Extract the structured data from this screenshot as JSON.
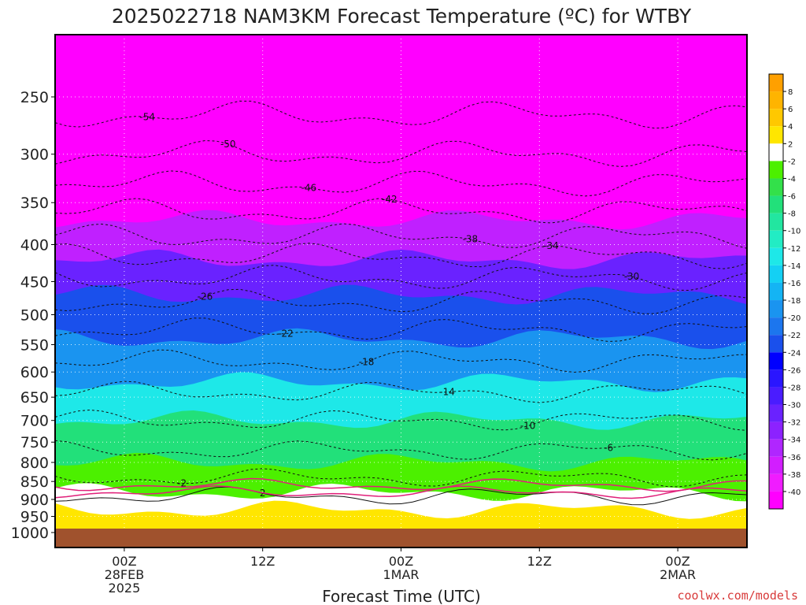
{
  "title": "2025022718 NAM3KM Forecast Temperature (ºC) for WTBY",
  "credit": "coolwx.com/models",
  "chart_data": {
    "type": "contour",
    "title": "2025022718 NAM3KM Forecast Temperature (ºC) for WTBY",
    "xlabel": "Forecast Time (UTC)",
    "ylabel": "",
    "x_ticks": [
      {
        "hour": 6,
        "lines": [
          "00Z",
          "28FEB",
          "2025"
        ]
      },
      {
        "hour": 18,
        "lines": [
          "12Z"
        ]
      },
      {
        "hour": 30,
        "lines": [
          "00Z",
          "1MAR"
        ]
      },
      {
        "hour": 42,
        "lines": [
          "12Z"
        ]
      },
      {
        "hour": 54,
        "lines": [
          "00Z",
          "2MAR"
        ]
      }
    ],
    "x_range_hours": [
      0,
      60
    ],
    "y_scale": "log-pressure (hPa, inverted)",
    "y_ticks": [
      250,
      300,
      350,
      400,
      450,
      500,
      550,
      600,
      650,
      700,
      750,
      800,
      850,
      900,
      950,
      1000
    ],
    "y_range_hPa": [
      200,
      1030
    ],
    "colorbar": {
      "labels": [
        "8",
        "6",
        "4",
        "2",
        "-2",
        "-4",
        "-6",
        "-8",
        "-10",
        "-12",
        "-14",
        "-16",
        "-18",
        "-20",
        "-22",
        "-24",
        "-26",
        "-28",
        "-30",
        "-32",
        "-34",
        "-36",
        "-38",
        "-40"
      ],
      "colors": [
        "#ffa000",
        "#ffb400",
        "#ffc800",
        "#ffe600",
        "#ffffff",
        "#4cf000",
        "#33e04a",
        "#22e07a",
        "#22e6a0",
        "#22ecc4",
        "#1ee8e8",
        "#14d0f4",
        "#14b4f4",
        "#1a94f0",
        "#1c76ee",
        "#1a50ec",
        "#0000ff",
        "#2a16ff",
        "#4a1cff",
        "#6a22ff",
        "#8c22ff",
        "#b026ff",
        "#d21eff",
        "#f01cff",
        "#ff00ff"
      ]
    },
    "ground_color": "#a0522d",
    "contours": [
      {
        "label": "-54",
        "levels": [
          [
            45,
            0
          ],
          [
            51,
            -54
          ],
          [
            57,
            -54
          ],
          [
            62,
            -52
          ],
          [
            58,
            -50
          ],
          [
            48,
            -50
          ],
          [
            44,
            -50
          ]
        ]
      },
      {
        "label": "-50",
        "levels": [
          [
            2,
            -50
          ],
          [
            12,
            -49
          ],
          [
            24,
            -50
          ],
          [
            36,
            -50
          ],
          [
            48,
            -50
          ],
          [
            56,
            -49
          ],
          [
            60,
            -48
          ]
        ]
      },
      {
        "label": "-46",
        "levels": [
          [
            2,
            -46
          ],
          [
            14,
            -45
          ],
          [
            24,
            -46
          ],
          [
            36,
            -46
          ],
          [
            48,
            -46
          ],
          [
            56,
            -45
          ],
          [
            60,
            -46
          ]
        ]
      },
      {
        "label": "-42",
        "levels": [
          [
            2,
            -43
          ],
          [
            14,
            -42
          ],
          [
            24,
            -42
          ],
          [
            36,
            -42
          ],
          [
            48,
            -42
          ],
          [
            56,
            -42
          ],
          [
            60,
            -42
          ]
        ]
      },
      {
        "label": "-38",
        "levels": [
          [
            2,
            -38
          ],
          [
            14,
            -38
          ],
          [
            24,
            -38
          ],
          [
            36,
            -38
          ],
          [
            48,
            -38
          ],
          [
            56,
            -38
          ],
          [
            60,
            -38
          ]
        ]
      },
      {
        "label": "-34",
        "levels": [
          [
            2,
            -34
          ],
          [
            14,
            -34
          ],
          [
            24,
            -34
          ],
          [
            36,
            -34
          ],
          [
            48,
            -34
          ],
          [
            56,
            -34
          ],
          [
            60,
            -34
          ]
        ]
      },
      {
        "label": "-30",
        "levels": [
          [
            2,
            -30
          ],
          [
            14,
            -30
          ],
          [
            24,
            -30
          ],
          [
            36,
            -30
          ],
          [
            48,
            -30
          ],
          [
            56,
            -30
          ],
          [
            60,
            -30
          ]
        ]
      },
      {
        "label": "-26",
        "levels": [
          [
            2,
            -26
          ],
          [
            14,
            -26
          ],
          [
            24,
            -26
          ],
          [
            36,
            -26
          ],
          [
            48,
            -26
          ],
          [
            56,
            -26
          ],
          [
            60,
            -26
          ]
        ]
      },
      {
        "label": "-22",
        "levels": [
          [
            2,
            -22
          ],
          [
            14,
            -22
          ],
          [
            24,
            -22
          ],
          [
            36,
            -22
          ],
          [
            48,
            -22
          ],
          [
            56,
            -22
          ],
          [
            60,
            -22
          ]
        ]
      },
      {
        "label": "-18",
        "levels": [
          [
            2,
            -18
          ],
          [
            14,
            -18
          ],
          [
            24,
            -18
          ],
          [
            36,
            -18
          ],
          [
            48,
            -18
          ],
          [
            56,
            -18
          ],
          [
            60,
            -18
          ]
        ]
      },
      {
        "label": "-14",
        "levels": [
          [
            2,
            -14
          ],
          [
            14,
            -14
          ],
          [
            24,
            -14
          ],
          [
            36,
            -14
          ],
          [
            48,
            -14
          ],
          [
            56,
            -14
          ],
          [
            60,
            -14
          ]
        ]
      },
      {
        "label": "-10",
        "levels": [
          [
            2,
            -10
          ],
          [
            14,
            -10
          ],
          [
            24,
            -10
          ],
          [
            36,
            -10
          ],
          [
            48,
            -10
          ],
          [
            56,
            -10
          ],
          [
            60,
            -10
          ]
        ]
      },
      {
        "label": "-6",
        "levels": [
          [
            2,
            -6
          ],
          [
            14,
            -6
          ],
          [
            24,
            -6
          ],
          [
            36,
            -6
          ],
          [
            48,
            -6
          ],
          [
            56,
            -6
          ],
          [
            60,
            -6
          ]
        ]
      },
      {
        "label": "-2",
        "levels": [
          [
            2,
            -2
          ],
          [
            14,
            -2
          ],
          [
            24,
            -2
          ],
          [
            36,
            -2
          ],
          [
            48,
            -2
          ],
          [
            56,
            -2
          ],
          [
            60,
            -2
          ]
        ]
      },
      {
        "label": "2",
        "levels": [
          [
            2,
            2
          ],
          [
            14,
            2
          ],
          [
            24,
            2
          ],
          [
            36,
            2
          ],
          [
            48,
            2
          ],
          [
            56,
            2
          ],
          [
            60,
            2
          ]
        ]
      }
    ],
    "temperature_bands": [
      {
        "top_hPa": 200,
        "bottom_hPa": 370,
        "range": "< -40",
        "color": "#ff00ff"
      },
      {
        "top_hPa": 370,
        "bottom_hPa": 420,
        "range": "-40 to -34",
        "color": "#c020ff"
      },
      {
        "top_hPa": 420,
        "bottom_hPa": 470,
        "range": "-34 to -28",
        "color": "#6a22ff"
      },
      {
        "top_hPa": 470,
        "bottom_hPa": 540,
        "range": "-28 to -22",
        "color": "#1a50ec"
      },
      {
        "top_hPa": 540,
        "bottom_hPa": 620,
        "range": "-22 to -16",
        "color": "#1a94f0"
      },
      {
        "top_hPa": 620,
        "bottom_hPa": 700,
        "range": "-16 to -10",
        "color": "#1ee8e8"
      },
      {
        "top_hPa": 700,
        "bottom_hPa": 800,
        "range": "-10 to -4",
        "color": "#22e07a"
      },
      {
        "top_hPa": 800,
        "bottom_hPa": 880,
        "range": "-4 to -2",
        "color": "#4cf000"
      },
      {
        "top_hPa": 880,
        "bottom_hPa": 930,
        "range": "-2 to 2",
        "color": "#ffffff"
      },
      {
        "top_hPa": 930,
        "bottom_hPa": 980,
        "range": "2 to 8",
        "color": "#ffe600"
      }
    ]
  }
}
